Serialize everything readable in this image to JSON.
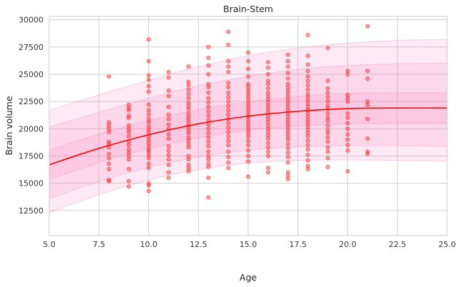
{
  "chart_data": {
    "type": "scatter",
    "title": "Brain-Stem",
    "xlabel": "Age",
    "ylabel": "Brain volume",
    "xlim": [
      5.0,
      25.0
    ],
    "ylim": [
      10200,
      30300
    ],
    "xticks": [
      5.0,
      7.5,
      10.0,
      12.5,
      15.0,
      17.5,
      20.0,
      22.5,
      25.0
    ],
    "xtick_labels": [
      "5.0",
      "7.5",
      "10.0",
      "12.5",
      "15.0",
      "17.5",
      "20.0",
      "22.5",
      "25.0"
    ],
    "yticks": [
      12500,
      15000,
      17500,
      20000,
      22500,
      25000,
      27500,
      30000
    ],
    "ytick_labels": [
      "12500",
      "15000",
      "17500",
      "20000",
      "22500",
      "25000",
      "27500",
      "30000"
    ],
    "grid": true,
    "legend": "none",
    "colors": {
      "points": "#ff2a2a",
      "mean_line": "#ff0000",
      "band": "#f781bf",
      "grid": "#d0d0d0",
      "frame": "#cccccc"
    },
    "mean_curve": {
      "x": [
        5,
        7.5,
        10,
        12.5,
        15,
        17.5,
        20,
        22.5,
        25
      ],
      "y": [
        16700,
        18200,
        19450,
        20450,
        21150,
        21600,
        21850,
        21900,
        21900
      ]
    },
    "bands": [
      {
        "lower": [
          15350,
          16900,
          18150,
          19150,
          19850,
          20250,
          20450,
          20500,
          20500
        ],
        "upper": [
          18050,
          19500,
          20750,
          21750,
          22450,
          22950,
          23250,
          23300,
          23300
        ]
      },
      {
        "lower": [
          13600,
          15150,
          16450,
          17400,
          18050,
          18350,
          18450,
          18450,
          18400
        ],
        "upper": [
          20150,
          21500,
          22800,
          23950,
          24800,
          25450,
          25800,
          25950,
          26000
        ]
      },
      {
        "lower": [
          12300,
          13950,
          15300,
          16250,
          16850,
          17100,
          17150,
          17100,
          17000
        ],
        "upper": [
          21700,
          23100,
          24450,
          25700,
          26700,
          27400,
          27850,
          28100,
          28200
        ]
      }
    ],
    "points": [
      [
        8,
        24800
      ],
      [
        8,
        20600
      ],
      [
        8,
        20300
      ],
      [
        8,
        20000
      ],
      [
        8,
        19700
      ],
      [
        8,
        18800
      ],
      [
        8,
        18600
      ],
      [
        8,
        18300
      ],
      [
        8,
        17700
      ],
      [
        8,
        17300
      ],
      [
        8,
        16800
      ],
      [
        8,
        16300
      ],
      [
        8,
        15300
      ],
      [
        8,
        15200
      ],
      [
        9,
        22200
      ],
      [
        9,
        21900
      ],
      [
        9,
        21700
      ],
      [
        9,
        21200
      ],
      [
        9,
        21000
      ],
      [
        9,
        20300
      ],
      [
        9,
        20000
      ],
      [
        9,
        19700
      ],
      [
        9,
        19300
      ],
      [
        9,
        18800
      ],
      [
        9,
        18500
      ],
      [
        9,
        18100
      ],
      [
        9,
        17800
      ],
      [
        9,
        17500
      ],
      [
        9,
        17200
      ],
      [
        9,
        16300
      ],
      [
        9,
        15200
      ],
      [
        9,
        14700
      ],
      [
        10,
        28200
      ],
      [
        10,
        26200
      ],
      [
        10,
        24900
      ],
      [
        10,
        24500
      ],
      [
        10,
        23900
      ],
      [
        10,
        23400
      ],
      [
        10,
        22200
      ],
      [
        10,
        21700
      ],
      [
        10,
        21300
      ],
      [
        10,
        20900
      ],
      [
        10,
        20600
      ],
      [
        10,
        20200
      ],
      [
        10,
        19900
      ],
      [
        10,
        19600
      ],
      [
        10,
        19300
      ],
      [
        10,
        19000
      ],
      [
        10,
        18700
      ],
      [
        10,
        18400
      ],
      [
        10,
        18100
      ],
      [
        10,
        17900
      ],
      [
        10,
        17600
      ],
      [
        10,
        17300
      ],
      [
        10,
        16800
      ],
      [
        10,
        16400
      ],
      [
        10,
        15000
      ],
      [
        10,
        14800
      ],
      [
        10,
        14300
      ],
      [
        11,
        25200
      ],
      [
        11,
        24700
      ],
      [
        11,
        23500
      ],
      [
        11,
        23000
      ],
      [
        11,
        22000
      ],
      [
        11,
        21300
      ],
      [
        11,
        20900
      ],
      [
        11,
        20400
      ],
      [
        11,
        20000
      ],
      [
        11,
        19500
      ],
      [
        11,
        19100
      ],
      [
        11,
        18400
      ],
      [
        11,
        18000
      ],
      [
        11,
        17600
      ],
      [
        11,
        17200
      ],
      [
        11,
        16700
      ],
      [
        11,
        16000
      ],
      [
        11,
        15500
      ],
      [
        12,
        25700
      ],
      [
        12,
        24300
      ],
      [
        12,
        24000
      ],
      [
        12,
        23600
      ],
      [
        12,
        23200
      ],
      [
        12,
        22800
      ],
      [
        12,
        22400
      ],
      [
        12,
        22100
      ],
      [
        12,
        21800
      ],
      [
        12,
        21400
      ],
      [
        12,
        21100
      ],
      [
        12,
        20800
      ],
      [
        12,
        20500
      ],
      [
        12,
        20200
      ],
      [
        12,
        19900
      ],
      [
        12,
        19600
      ],
      [
        12,
        19200
      ],
      [
        12,
        18900
      ],
      [
        12,
        18600
      ],
      [
        12,
        18300
      ],
      [
        12,
        17500
      ],
      [
        12,
        17200
      ],
      [
        12,
        16700
      ],
      [
        12,
        16400
      ],
      [
        12,
        16100
      ],
      [
        13,
        27500
      ],
      [
        13,
        26500
      ],
      [
        13,
        25800
      ],
      [
        13,
        25000
      ],
      [
        13,
        24100
      ],
      [
        13,
        23800
      ],
      [
        13,
        23300
      ],
      [
        13,
        22800
      ],
      [
        13,
        22400
      ],
      [
        13,
        22000
      ],
      [
        13,
        21600
      ],
      [
        13,
        21200
      ],
      [
        13,
        20800
      ],
      [
        13,
        20400
      ],
      [
        13,
        20000
      ],
      [
        13,
        19600
      ],
      [
        13,
        19200
      ],
      [
        13,
        18800
      ],
      [
        13,
        18400
      ],
      [
        13,
        17900
      ],
      [
        13,
        17500
      ],
      [
        13,
        17200
      ],
      [
        13,
        16800
      ],
      [
        13,
        16500
      ],
      [
        13,
        15500
      ],
      [
        13,
        13700
      ],
      [
        14,
        28900
      ],
      [
        14,
        27700
      ],
      [
        14,
        26200
      ],
      [
        14,
        25700
      ],
      [
        14,
        25200
      ],
      [
        14,
        24200
      ],
      [
        14,
        23800
      ],
      [
        14,
        23300
      ],
      [
        14,
        22900
      ],
      [
        14,
        22500
      ],
      [
        14,
        22100
      ],
      [
        14,
        21700
      ],
      [
        14,
        21300
      ],
      [
        14,
        20900
      ],
      [
        14,
        20500
      ],
      [
        14,
        20100
      ],
      [
        14,
        19700
      ],
      [
        14,
        19300
      ],
      [
        14,
        18900
      ],
      [
        14,
        18500
      ],
      [
        14,
        17900
      ],
      [
        14,
        17400
      ],
      [
        14,
        16900
      ],
      [
        14,
        16400
      ],
      [
        15,
        27000
      ],
      [
        15,
        26200
      ],
      [
        15,
        25500
      ],
      [
        15,
        24800
      ],
      [
        15,
        24100
      ],
      [
        15,
        23800
      ],
      [
        15,
        23500
      ],
      [
        15,
        23200
      ],
      [
        15,
        22900
      ],
      [
        15,
        22600
      ],
      [
        15,
        22300
      ],
      [
        15,
        22000
      ],
      [
        15,
        21700
      ],
      [
        15,
        21400
      ],
      [
        15,
        21100
      ],
      [
        15,
        20800
      ],
      [
        15,
        20500
      ],
      [
        15,
        20200
      ],
      [
        15,
        19900
      ],
      [
        15,
        19600
      ],
      [
        15,
        19300
      ],
      [
        15,
        18900
      ],
      [
        15,
        18500
      ],
      [
        15,
        18000
      ],
      [
        15,
        17500
      ],
      [
        15,
        17000
      ],
      [
        15,
        15600
      ],
      [
        16,
        26100
      ],
      [
        16,
        25600
      ],
      [
        16,
        25000
      ],
      [
        16,
        24400
      ],
      [
        16,
        24100
      ],
      [
        16,
        23700
      ],
      [
        16,
        23300
      ],
      [
        16,
        23000
      ],
      [
        16,
        22700
      ],
      [
        16,
        22400
      ],
      [
        16,
        22100
      ],
      [
        16,
        21800
      ],
      [
        16,
        21500
      ],
      [
        16,
        21200
      ],
      [
        16,
        20900
      ],
      [
        16,
        20600
      ],
      [
        16,
        20300
      ],
      [
        16,
        20000
      ],
      [
        16,
        19700
      ],
      [
        16,
        19400
      ],
      [
        16,
        19100
      ],
      [
        16,
        18700
      ],
      [
        16,
        18300
      ],
      [
        16,
        17900
      ],
      [
        16,
        17500
      ],
      [
        16,
        16400
      ],
      [
        16,
        16000
      ],
      [
        17,
        26800
      ],
      [
        17,
        26200
      ],
      [
        17,
        25700
      ],
      [
        17,
        25100
      ],
      [
        17,
        24600
      ],
      [
        17,
        24100
      ],
      [
        17,
        23800
      ],
      [
        17,
        23500
      ],
      [
        17,
        23200
      ],
      [
        17,
        22900
      ],
      [
        17,
        22600
      ],
      [
        17,
        22300
      ],
      [
        17,
        22000
      ],
      [
        17,
        21700
      ],
      [
        17,
        21400
      ],
      [
        17,
        21100
      ],
      [
        17,
        20800
      ],
      [
        17,
        20500
      ],
      [
        17,
        20200
      ],
      [
        17,
        19900
      ],
      [
        17,
        19600
      ],
      [
        17,
        19300
      ],
      [
        17,
        19000
      ],
      [
        17,
        18600
      ],
      [
        17,
        18200
      ],
      [
        17,
        17800
      ],
      [
        17,
        17400
      ],
      [
        17,
        16900
      ],
      [
        17,
        16000
      ],
      [
        17,
        15700
      ],
      [
        17,
        15400
      ],
      [
        18,
        28600
      ],
      [
        18,
        26700
      ],
      [
        18,
        25900
      ],
      [
        18,
        25300
      ],
      [
        18,
        24800
      ],
      [
        18,
        24400
      ],
      [
        18,
        24000
      ],
      [
        18,
        23600
      ],
      [
        18,
        23200
      ],
      [
        18,
        22900
      ],
      [
        18,
        22600
      ],
      [
        18,
        22300
      ],
      [
        18,
        22000
      ],
      [
        18,
        21700
      ],
      [
        18,
        21400
      ],
      [
        18,
        21100
      ],
      [
        18,
        20800
      ],
      [
        18,
        20500
      ],
      [
        18,
        20200
      ],
      [
        18,
        19900
      ],
      [
        18,
        19600
      ],
      [
        18,
        19300
      ],
      [
        18,
        18900
      ],
      [
        18,
        18500
      ],
      [
        18,
        18100
      ],
      [
        18,
        17600
      ],
      [
        18,
        17100
      ],
      [
        18,
        16600
      ],
      [
        18,
        16300
      ],
      [
        19,
        27400
      ],
      [
        19,
        24400
      ],
      [
        19,
        23700
      ],
      [
        19,
        23300
      ],
      [
        19,
        22900
      ],
      [
        19,
        22500
      ],
      [
        19,
        22100
      ],
      [
        19,
        21800
      ],
      [
        19,
        21400
      ],
      [
        19,
        21000
      ],
      [
        19,
        20700
      ],
      [
        19,
        20300
      ],
      [
        19,
        19900
      ],
      [
        19,
        19600
      ],
      [
        19,
        19200
      ],
      [
        19,
        18800
      ],
      [
        19,
        18300
      ],
      [
        19,
        17900
      ],
      [
        19,
        17300
      ],
      [
        19,
        16500
      ],
      [
        20,
        25300
      ],
      [
        20,
        25000
      ],
      [
        20,
        23100
      ],
      [
        20,
        22800
      ],
      [
        20,
        22500
      ],
      [
        20,
        21400
      ],
      [
        20,
        21000
      ],
      [
        20,
        20500
      ],
      [
        20,
        20000
      ],
      [
        20,
        19500
      ],
      [
        20,
        19000
      ],
      [
        20,
        18500
      ],
      [
        20,
        18000
      ],
      [
        20,
        16100
      ],
      [
        21,
        29400
      ],
      [
        21,
        25300
      ],
      [
        21,
        24600
      ],
      [
        21,
        22500
      ],
      [
        21,
        22200
      ],
      [
        21,
        20900
      ],
      [
        21,
        19100
      ],
      [
        21,
        17900
      ],
      [
        21,
        17700
      ]
    ]
  }
}
